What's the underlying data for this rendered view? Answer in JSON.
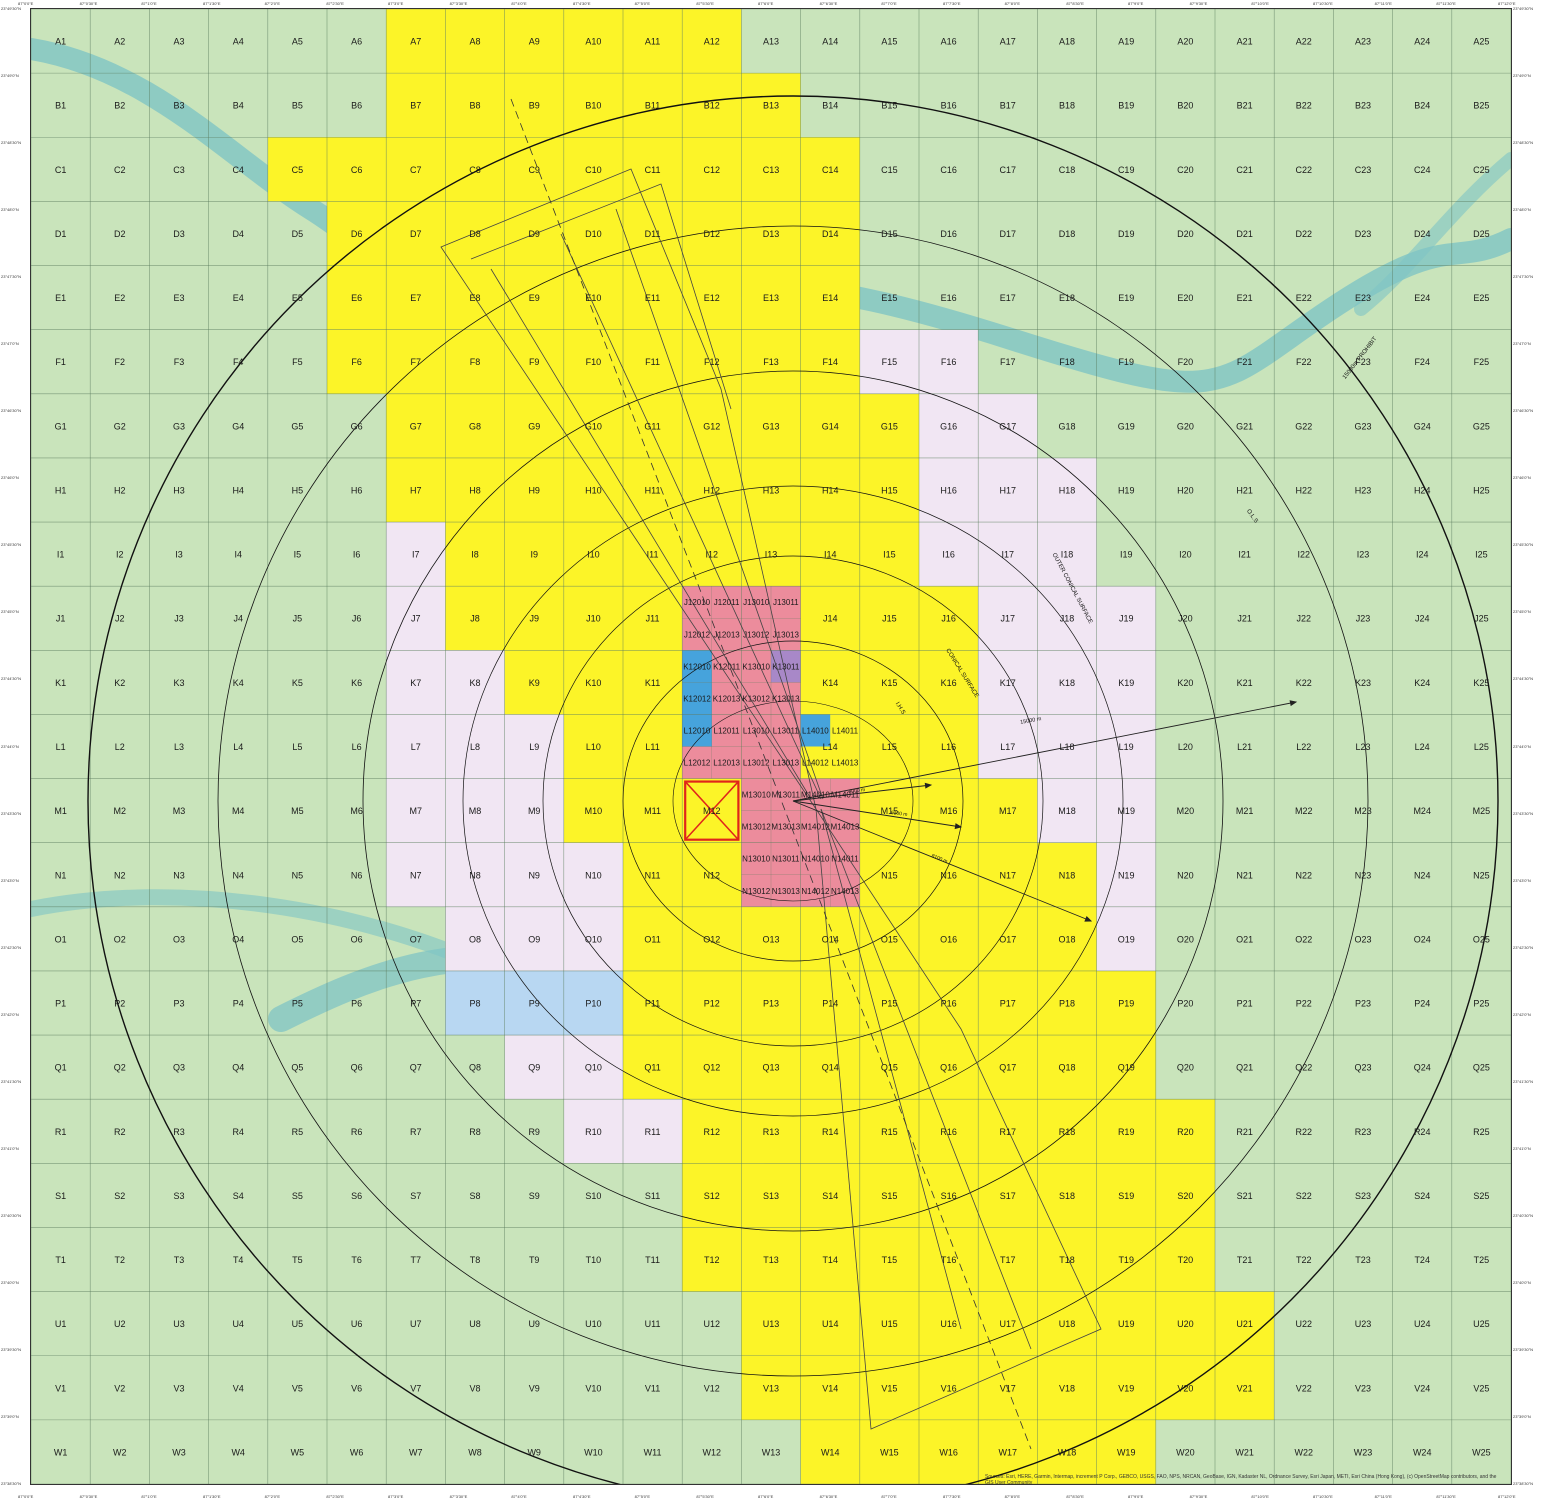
{
  "grid": {
    "rows": [
      "A",
      "B",
      "C",
      "D",
      "E",
      "F",
      "G",
      "H",
      "I",
      "J",
      "K",
      "L",
      "M",
      "N",
      "O",
      "P",
      "Q",
      "R",
      "S",
      "T",
      "U",
      "V",
      "W"
    ],
    "columns": 25
  },
  "colors": {
    "base": "#c9e4bb",
    "yellow": "#fcf428",
    "lavender": "#f1e6f3",
    "pink": "#ec8c9c",
    "blue": "#46a3dc",
    "light_blue": "#b8d7f2",
    "purple": "#a888c8",
    "river": "#7fc4c4",
    "gridline": "#587a5c",
    "circle": "#111111",
    "red_marker": "#e0251b"
  },
  "zones": {
    "yellow": [
      "A7",
      "A8",
      "A9",
      "A10",
      "A11",
      "A12",
      "B7",
      "B8",
      "B9",
      "B10",
      "B11",
      "B12",
      "B13",
      "C5",
      "C6",
      "C7",
      "C8",
      "C9",
      "C10",
      "C11",
      "C12",
      "C13",
      "C14",
      "D6",
      "D7",
      "D8",
      "D9",
      "D10",
      "D11",
      "D12",
      "D13",
      "D14",
      "E6",
      "E7",
      "E8",
      "E9",
      "E10",
      "E11",
      "E12",
      "E13",
      "E14",
      "F6",
      "F7",
      "F8",
      "F9",
      "F10",
      "F11",
      "F12",
      "F13",
      "F14",
      "G7",
      "G8",
      "G9",
      "G10",
      "G11",
      "G12",
      "G13",
      "G14",
      "G15",
      "H7",
      "H8",
      "H9",
      "H10",
      "H11",
      "H12",
      "H13",
      "H14",
      "H15",
      "I8",
      "I9",
      "I10",
      "I11",
      "I12",
      "I13",
      "I14",
      "I15",
      "J8",
      "J9",
      "J10",
      "J11",
      "J13",
      "J14",
      "J15",
      "J16",
      "K9",
      "K10",
      "K11",
      "K13",
      "K14",
      "K15",
      "K16",
      "L10",
      "L11",
      "L12",
      "L13",
      "L14",
      "L15",
      "L16",
      "M10",
      "M11",
      "M12",
      "M13",
      "M14",
      "M15",
      "M16",
      "M17",
      "N11",
      "N12",
      "N15",
      "N16",
      "N17",
      "N18",
      "O11",
      "O12",
      "O13",
      "O14",
      "O15",
      "O16",
      "O17",
      "O18",
      "P11",
      "P12",
      "P13",
      "P14",
      "P15",
      "P16",
      "P17",
      "P18",
      "P19",
      "Q11",
      "Q12",
      "Q13",
      "Q14",
      "Q15",
      "Q16",
      "Q17",
      "Q18",
      "Q19",
      "R12",
      "R13",
      "R14",
      "R15",
      "R16",
      "R17",
      "R18",
      "R19",
      "R20",
      "S12",
      "S13",
      "S14",
      "S15",
      "S16",
      "S17",
      "S18",
      "S19",
      "S20",
      "T12",
      "T13",
      "T14",
      "T15",
      "T16",
      "T17",
      "T18",
      "T19",
      "T20",
      "U13",
      "U14",
      "U15",
      "U16",
      "U17",
      "U18",
      "U19",
      "U20",
      "U21",
      "V13",
      "V14",
      "V15",
      "V16",
      "V17",
      "V18",
      "V19",
      "V20",
      "V21",
      "W14",
      "W15",
      "W16",
      "W17",
      "W18",
      "W19"
    ],
    "lavender": [
      "F15",
      "F16",
      "G16",
      "G17",
      "H16",
      "H17",
      "H18",
      "I7",
      "I16",
      "I17",
      "I18",
      "J7",
      "J17",
      "J18",
      "J19",
      "K7",
      "K8",
      "K17",
      "K18",
      "K19",
      "L7",
      "L8",
      "L9",
      "L17",
      "L18",
      "L19",
      "M7",
      "M8",
      "M9",
      "M18",
      "M19",
      "N7",
      "N8",
      "N9",
      "N10",
      "N19",
      "O8",
      "O9",
      "O10",
      "O19",
      "Q9",
      "Q10",
      "R10",
      "R11"
    ],
    "pink": [
      "J12",
      "J13",
      "K12",
      "K13",
      "L12",
      "L13",
      "M13",
      "M14",
      "N13",
      "N14"
    ],
    "blue": [
      "K12",
      "L12",
      "L14"
    ],
    "light_blue": [
      "P8",
      "P9",
      "P10"
    ],
    "purple": [
      "K13"
    ],
    "red_square": "M12"
  },
  "sub_labels": {
    "J12": [
      "J12010",
      "J12011",
      "J12012",
      "J12013"
    ],
    "J13": [
      "J13010",
      "J13011",
      "J13012",
      "J13013"
    ],
    "K12": [
      "K12010",
      "K12011",
      "K12012",
      "K12013"
    ],
    "K13": [
      "K13010",
      "K13011",
      "K13012",
      "K13013"
    ],
    "L12": [
      "L12010",
      "L12011",
      "L12012",
      "L12013"
    ],
    "L13": [
      "L13010",
      "L13011",
      "L13012",
      "L13013"
    ],
    "L14": [
      "L14010",
      "L14011",
      "L14012",
      "L14013"
    ],
    "M13": [
      "M13010",
      "M13011",
      "M13012",
      "M13013"
    ],
    "M14": [
      "M14010",
      "M14011",
      "M14012",
      "M14013"
    ],
    "N13": [
      "N13010",
      "N13011",
      "N13012",
      "N13013"
    ],
    "N14": [
      "N14010",
      "N14011",
      "N14012",
      "N14013"
    ]
  },
  "map_labels": {
    "ring_outer": "15000m PROHIBIT",
    "outer_conical": "OUTER CONICAL SURFACE",
    "conical": "CONICAL SURFACE",
    "ihs": "I.H.S",
    "ols": "O.L.S",
    "dist_15000": "15000 m",
    "dist_4000": "4000 m",
    "dist_6100": "6100 m",
    "dist_8100": "8100 m"
  },
  "edges": {
    "top": [
      "87°0'0\"E",
      "87°0'30\"E",
      "87°1'0\"E",
      "87°1'30\"E",
      "87°2'0\"E",
      "87°2'30\"E",
      "87°3'0\"E",
      "87°3'30\"E",
      "87°4'0\"E",
      "87°4'30\"E",
      "87°5'0\"E",
      "87°5'30\"E",
      "87°6'0\"E",
      "87°6'30\"E",
      "87°7'0\"E",
      "87°7'30\"E",
      "87°8'0\"E",
      "87°8'30\"E",
      "87°9'0\"E",
      "87°9'30\"E",
      "87°10'0\"E",
      "87°10'30\"E",
      "87°11'0\"E",
      "87°11'30\"E",
      "87°12'0\"E"
    ],
    "left": [
      "23°49'30\"N",
      "23°49'0\"N",
      "23°48'30\"N",
      "23°48'0\"N",
      "23°47'30\"N",
      "23°47'0\"N",
      "23°46'30\"N",
      "23°46'0\"N",
      "23°45'30\"N",
      "23°45'0\"N",
      "23°44'30\"N",
      "23°44'0\"N",
      "23°43'30\"N",
      "23°43'0\"N",
      "23°42'30\"N",
      "23°42'0\"N",
      "23°41'30\"N",
      "23°41'0\"N",
      "23°40'30\"N",
      "23°40'0\"N",
      "23°39'30\"N",
      "23°39'0\"N",
      "23°38'30\"N"
    ]
  },
  "source_credit": "Sources: Esri, HERE, Garmin, Intermap, increment P Corp., GEBCO, USGS, FAO, NPS, NRCAN, GeoBase, IGN, Kadaster NL, Ordnance Survey, Esri Japan, METI, Esri China (Hong Kong), (c) OpenStreetMap contributors, and the GIS User Community"
}
